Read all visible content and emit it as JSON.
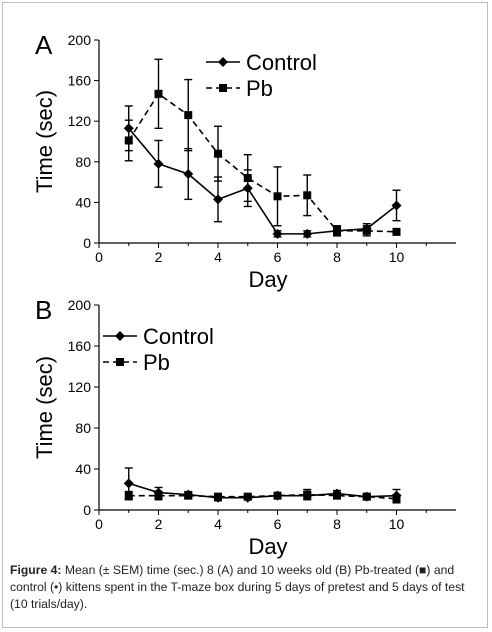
{
  "caption": {
    "label": "Figure 4:",
    "text": "Mean (± SEM) time (sec.) 8 (A) and 10 weeks old (B) Pb-treated (■) and control (•) kittens spent in the T-maze box during 5 days of pretest and 5 days of test (10 trials/day)."
  },
  "chart_data": [
    {
      "panel": "A",
      "type": "line",
      "xlabel": "Day",
      "ylabel": "Time (sec)",
      "xlim": [
        0,
        12
      ],
      "ylim": [
        0,
        200
      ],
      "xticks": [
        0,
        2,
        4,
        6,
        8,
        10
      ],
      "yticks": [
        0,
        40,
        80,
        120,
        160,
        200
      ],
      "legend_position": "top-right",
      "x": [
        1,
        2,
        3,
        4,
        5,
        6,
        7,
        8,
        9,
        10
      ],
      "series": [
        {
          "name": "Control",
          "marker": "diamond",
          "line": "solid",
          "color": "#000000",
          "values": [
            113,
            78,
            68,
            43,
            54,
            9,
            9,
            12,
            14,
            37
          ],
          "sem": [
            22,
            23,
            25,
            22,
            18,
            3,
            3,
            4,
            5,
            15
          ]
        },
        {
          "name": "Pb",
          "marker": "square",
          "line": "dashed",
          "color": "#000000",
          "values": [
            101,
            147,
            126,
            88,
            64,
            46,
            47,
            12,
            12,
            11
          ],
          "sem": [
            20,
            34,
            35,
            27,
            23,
            29,
            20,
            5,
            5,
            3
          ]
        }
      ]
    },
    {
      "panel": "B",
      "type": "line",
      "xlabel": "Day",
      "ylabel": "Time (sec)",
      "xlim": [
        0,
        12
      ],
      "ylim": [
        0,
        200
      ],
      "xticks": [
        0,
        2,
        4,
        6,
        8,
        10
      ],
      "yticks": [
        0,
        40,
        80,
        120,
        160,
        200
      ],
      "legend_position": "top-left",
      "x": [
        1,
        2,
        3,
        4,
        5,
        6,
        7,
        8,
        9,
        10
      ],
      "series": [
        {
          "name": "Control",
          "marker": "diamond",
          "line": "solid",
          "color": "#000000",
          "values": [
            26,
            17,
            15,
            12,
            12,
            14,
            14,
            16,
            13,
            14
          ],
          "sem": [
            15,
            5,
            3,
            3,
            2,
            2,
            3,
            3,
            2,
            6
          ]
        },
        {
          "name": "Pb",
          "marker": "square",
          "line": "dashed",
          "color": "#000000",
          "values": [
            14,
            14,
            14,
            13,
            13,
            14,
            15,
            14,
            13,
            11
          ],
          "sem": [
            4,
            4,
            3,
            3,
            2,
            2,
            5,
            3,
            3,
            4
          ]
        }
      ]
    }
  ]
}
